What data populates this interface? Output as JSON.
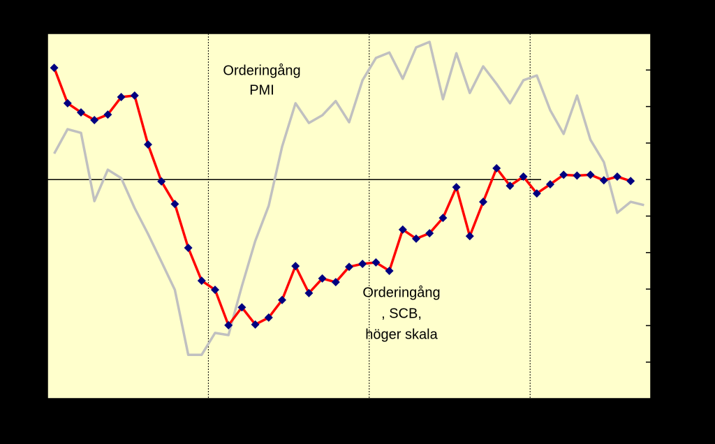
{
  "chart_data": {
    "type": "line",
    "annotations": [
      [
        "Orderingång",
        "PMI"
      ],
      [
        "Orderingång",
        ", SCB,",
        "höger skala"
      ]
    ],
    "x": [
      0,
      1,
      2,
      3,
      4,
      5,
      6,
      7,
      8,
      9,
      10,
      11,
      12,
      13,
      14,
      15,
      16,
      17,
      18,
      19,
      20,
      21,
      22,
      23,
      24,
      25,
      26,
      27,
      28,
      29,
      30,
      31,
      32,
      33,
      34,
      35,
      36,
      37,
      38,
      39,
      40,
      41,
      42,
      43,
      44
    ],
    "series": [
      {
        "color": "#c0c0c0",
        "values": [
          0.71,
          1.38,
          1.28,
          -0.59,
          0.27,
          0.04,
          -0.78,
          -1.49,
          -2.25,
          -3.02,
          -4.8,
          -4.8,
          -4.2,
          -4.26,
          -2.92,
          -1.68,
          -0.72,
          0.9,
          2.09,
          1.55,
          1.76,
          2.15,
          1.57,
          2.72,
          3.33,
          3.48,
          2.76,
          3.62,
          3.77,
          2.2,
          3.46,
          2.37,
          3.1,
          2.62,
          2.09,
          2.72,
          2.85,
          1.9,
          1.25,
          2.3,
          1.09,
          0.48,
          -0.91,
          -0.61,
          -0.7
        ]
      },
      {
        "color": "#ff0000",
        "marker_color": "#000080",
        "values": [
          3.06,
          2.09,
          1.84,
          1.63,
          1.78,
          2.26,
          2.3,
          0.96,
          -0.05,
          -0.67,
          -1.87,
          -2.77,
          -3.02,
          -3.99,
          -3.5,
          -3.97,
          -3.78,
          -3.3,
          -2.37,
          -3.11,
          -2.71,
          -2.81,
          -2.39,
          -2.31,
          -2.27,
          -2.5,
          -1.37,
          -1.62,
          -1.47,
          -1.05,
          -0.21,
          -1.55,
          -0.61,
          0.31,
          -0.17,
          0.08,
          -0.38,
          -0.13,
          0.13,
          0.11,
          0.13,
          -0.02,
          0.08,
          -0.04,
          null
        ]
      }
    ],
    "xlim": [
      -0.5,
      44.5
    ],
    "xticks": [
      11.5,
      23.5,
      35.5
    ],
    "ylim": [
      -6,
      4
    ],
    "yticks": [
      -5,
      -4,
      -3,
      -2,
      -1,
      0,
      1,
      2,
      3
    ],
    "background": "#ffffcc"
  }
}
